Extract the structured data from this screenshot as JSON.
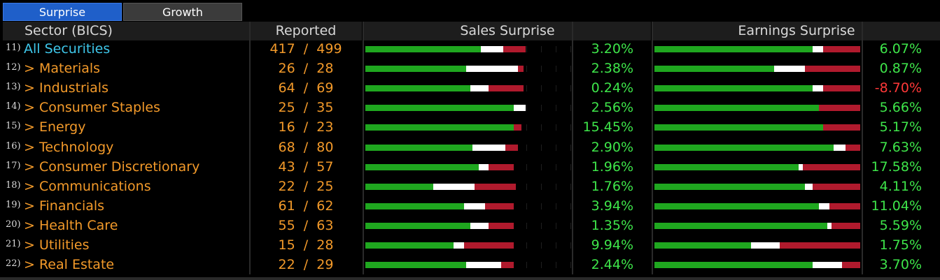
{
  "tabs": [
    {
      "label": "Surprise",
      "active": true
    },
    {
      "label": "Growth",
      "active": false
    }
  ],
  "header": {
    "sector": "Sector (BICS)",
    "reported": "Reported",
    "sales": "Sales Surprise",
    "earnings": "Earnings Surprise"
  },
  "colors": {
    "green": "#1fa71f",
    "white": "#ffffff",
    "red": "#b01a2d",
    "orange": "#f39a2a",
    "cyan": "#3ec7ea"
  },
  "rows": [
    {
      "idx": "11)",
      "name": "All Securities",
      "reported": "417  /  499",
      "sales_pct": "3.20%",
      "earn_pct": "6.07%",
      "sales_bar": [
        0.56,
        0.11,
        0.11
      ],
      "earn_bar": [
        0.77,
        0.05,
        0.18
      ]
    },
    {
      "idx": "12)",
      "name": "> Materials",
      "reported": "26  /  28",
      "sales_pct": "2.38%",
      "earn_pct": "0.87%",
      "sales_bar": [
        0.49,
        0.25,
        0.03
      ],
      "earn_bar": [
        0.58,
        0.15,
        0.27
      ]
    },
    {
      "idx": "13)",
      "name": "> Industrials",
      "reported": "64  /  69",
      "sales_pct": "0.24%",
      "earn_pct": "-8.70%",
      "sales_bar": [
        0.51,
        0.09,
        0.17
      ],
      "earn_bar": [
        0.77,
        0.05,
        0.18
      ]
    },
    {
      "idx": "14)",
      "name": "> Consumer Staples",
      "reported": "25  /  35",
      "sales_pct": "2.56%",
      "earn_pct": "5.66%",
      "sales_bar": [
        0.72,
        0.06,
        0.0
      ],
      "earn_bar": [
        0.8,
        0.0,
        0.2
      ]
    },
    {
      "idx": "15)",
      "name": "> Energy",
      "reported": "16  /  23",
      "sales_pct": "15.45%",
      "earn_pct": "5.17%",
      "sales_bar": [
        0.72,
        0.0,
        0.04
      ],
      "earn_bar": [
        0.82,
        0.0,
        0.18
      ]
    },
    {
      "idx": "16)",
      "name": "> Technology",
      "reported": "68  /  80",
      "sales_pct": "2.90%",
      "earn_pct": "7.63%",
      "sales_bar": [
        0.52,
        0.16,
        0.06
      ],
      "earn_bar": [
        0.87,
        0.06,
        0.07
      ]
    },
    {
      "idx": "17)",
      "name": "> Consumer Discretionary",
      "reported": "43  /  57",
      "sales_pct": "1.96%",
      "earn_pct": "17.58%",
      "sales_bar": [
        0.55,
        0.05,
        0.12
      ],
      "earn_bar": [
        0.7,
        0.02,
        0.28
      ]
    },
    {
      "idx": "18)",
      "name": "> Communications",
      "reported": "22  /  25",
      "sales_pct": "1.76%",
      "earn_pct": "4.11%",
      "sales_bar": [
        0.33,
        0.2,
        0.2
      ],
      "earn_bar": [
        0.73,
        0.04,
        0.23
      ]
    },
    {
      "idx": "19)",
      "name": "> Financials",
      "reported": "61  /  62",
      "sales_pct": "3.94%",
      "earn_pct": "11.04%",
      "sales_bar": [
        0.48,
        0.1,
        0.14
      ],
      "earn_bar": [
        0.8,
        0.05,
        0.15
      ]
    },
    {
      "idx": "20)",
      "name": "> Health Care",
      "reported": "55  /  63",
      "sales_pct": "1.35%",
      "earn_pct": "5.59%",
      "sales_bar": [
        0.51,
        0.09,
        0.12
      ],
      "earn_bar": [
        0.84,
        0.02,
        0.14
      ]
    },
    {
      "idx": "21)",
      "name": "> Utilities",
      "reported": "15  /  28",
      "sales_pct": "9.94%",
      "earn_pct": "1.75%",
      "sales_bar": [
        0.43,
        0.05,
        0.24
      ],
      "earn_bar": [
        0.47,
        0.14,
        0.39
      ]
    },
    {
      "idx": "22)",
      "name": "> Real Estate",
      "reported": "22  /  29",
      "sales_pct": "2.44%",
      "earn_pct": "3.70%",
      "sales_bar": [
        0.49,
        0.17,
        0.06
      ],
      "earn_bar": [
        0.77,
        0.14,
        0.09
      ]
    }
  ]
}
